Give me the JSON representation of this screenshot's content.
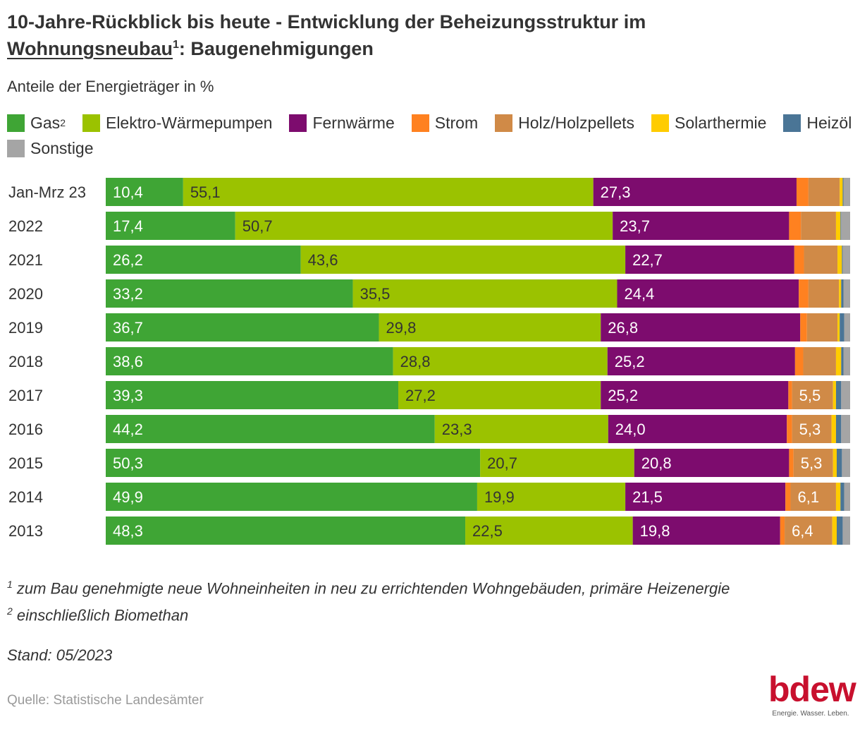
{
  "title": {
    "line1": "10-Jahre-Rückblick bis heute - Entwicklung der Beheizungsstruktur im",
    "line2_underlined": "Wohnungsneubau",
    "line2_sup": "1",
    "line2_rest": ": Baugenehmigungen"
  },
  "subtitle": "Anteile der Energieträger in %",
  "legend": [
    {
      "label": "Gas",
      "sup": "2",
      "color": "#3fa535"
    },
    {
      "label": "Elektro-Wärmepumpen",
      "sup": "",
      "color": "#9bc200"
    },
    {
      "label": "Fernwärme",
      "sup": "",
      "color": "#7d0c6e"
    },
    {
      "label": "Strom",
      "sup": "",
      "color": "#ff8120"
    },
    {
      "label": "Holz/Holzpellets",
      "sup": "",
      "color": "#d08a47"
    },
    {
      "label": "Solarthermie",
      "sup": "",
      "color": "#ffcc00"
    },
    {
      "label": "Heizöl",
      "sup": "",
      "color": "#4a7596"
    },
    {
      "label": "Sonstige",
      "sup": "",
      "color": "#a5a5a5"
    }
  ],
  "chart_data": {
    "type": "bar",
    "orientation": "horizontal",
    "stacked": true,
    "xlim": [
      0,
      100
    ],
    "grid": false,
    "legend_position": "top",
    "categories": [
      "Jan-Mrz 23",
      "2022",
      "2021",
      "2020",
      "2019",
      "2018",
      "2017",
      "2016",
      "2015",
      "2014",
      "2013"
    ],
    "series": [
      {
        "name": "Gas",
        "color": "#3fa535",
        "text_color": "#ffffff",
        "values": [
          10.4,
          17.4,
          26.2,
          33.2,
          36.7,
          38.6,
          39.3,
          44.2,
          50.3,
          49.9,
          48.3
        ],
        "labels": [
          "10,4",
          "17,4",
          "26,2",
          "33,2",
          "36,7",
          "38,6",
          "39,3",
          "44,2",
          "50,3",
          "49,9",
          "48,3"
        ]
      },
      {
        "name": "Elektro-Wärmepumpen",
        "color": "#9bc200",
        "text_color": "#333333",
        "values": [
          55.1,
          50.7,
          43.6,
          35.5,
          29.8,
          28.8,
          27.2,
          23.3,
          20.7,
          19.9,
          22.5
        ],
        "labels": [
          "55,1",
          "50,7",
          "43,6",
          "35,5",
          "29,8",
          "28,8",
          "27,2",
          "23,3",
          "20,7",
          "19,9",
          "22,5"
        ]
      },
      {
        "name": "Fernwärme",
        "color": "#7d0c6e",
        "text_color": "#ffffff",
        "values": [
          27.3,
          23.7,
          22.7,
          24.4,
          26.8,
          25.2,
          25.2,
          24.0,
          20.8,
          21.5,
          19.8
        ],
        "labels": [
          "27,3",
          "23,7",
          "22,7",
          "24,4",
          "26,8",
          "25,2",
          "25,2",
          "24,0",
          "20,8",
          "21,5",
          "19,8"
        ]
      },
      {
        "name": "Strom",
        "color": "#ff8120",
        "text_color": "#ffffff",
        "values": [
          1.6,
          1.6,
          1.3,
          1.3,
          0.9,
          1.1,
          0.5,
          0.7,
          0.6,
          0.7,
          0.6
        ],
        "labels": [
          "",
          "",
          "",
          "",
          "",
          "",
          "",
          "",
          "",
          "",
          ""
        ]
      },
      {
        "name": "Holz/Holzpellets",
        "color": "#d08a47",
        "text_color": "#ffffff",
        "values": [
          4.2,
          4.7,
          4.5,
          4.1,
          4.1,
          4.4,
          5.5,
          5.3,
          5.3,
          6.1,
          6.4
        ],
        "labels": [
          "",
          "",
          "",
          "",
          "",
          "",
          "5,5",
          "5,3",
          "5,3",
          "6,1",
          "6,4"
        ]
      },
      {
        "name": "Solarthermie",
        "color": "#ffcc00",
        "text_color": "#333333",
        "values": [
          0.4,
          0.6,
          0.6,
          0.3,
          0.3,
          0.7,
          0.4,
          0.6,
          0.5,
          0.6,
          0.6
        ],
        "labels": [
          "",
          "",
          "",
          "",
          "",
          "",
          "",
          "",
          "",
          "",
          ""
        ]
      },
      {
        "name": "Heizöl",
        "color": "#4a7596",
        "text_color": "#ffffff",
        "values": [
          0.1,
          0.1,
          0.1,
          0.3,
          0.6,
          0.3,
          0.7,
          0.7,
          0.7,
          0.5,
          0.8
        ],
        "labels": [
          "",
          "",
          "",
          "",
          "",
          "",
          "",
          "",
          "",
          "",
          ""
        ]
      },
      {
        "name": "Sonstige",
        "color": "#a5a5a5",
        "text_color": "#ffffff",
        "values": [
          0.9,
          1.2,
          1.0,
          0.9,
          0.8,
          0.9,
          1.2,
          1.2,
          1.1,
          0.8,
          1.0
        ],
        "labels": [
          "",
          "",
          "",
          "",
          "",
          "",
          "",
          "",
          "",
          "",
          ""
        ]
      }
    ]
  },
  "footnotes": [
    {
      "sup": "1",
      "text": " zum Bau genehmigte neue Wohneinheiten in neu zu errichtenden Wohngebäuden, primäre Heizenergie"
    },
    {
      "sup": "2",
      "text": " einschließlich Biomethan"
    }
  ],
  "stand": "Stand: 05/2023",
  "source": "Quelle: Statistische Landesämter",
  "logo": {
    "word": "bdew",
    "claim": "Energie. Wasser. Leben.",
    "color": "#c8102e"
  }
}
